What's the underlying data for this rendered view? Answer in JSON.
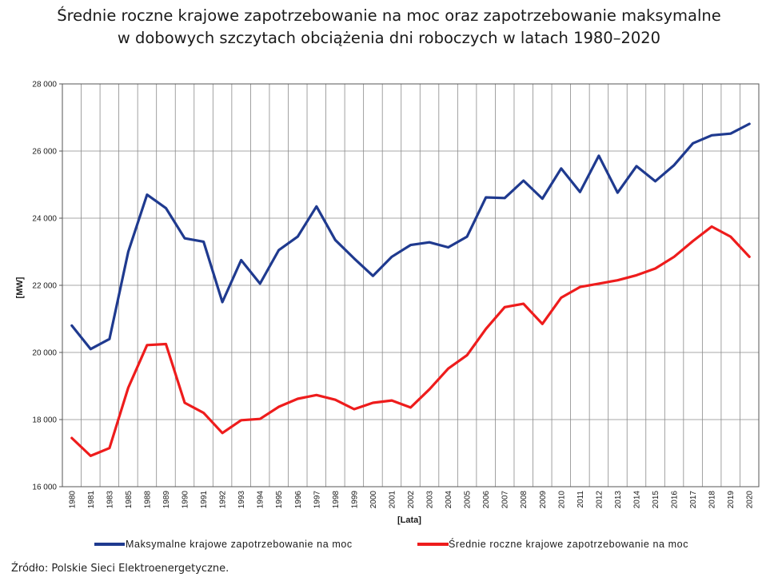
{
  "title_line1": "Średnie roczne krajowe zapotrzebowanie na moc oraz zapotrzebowanie maksymalne",
  "title_line2": "w dobowych szczytach obciążenia dni roboczych w latach 1980–2020",
  "source": "Źródło: Polskie Sieci Elektroenergetyczne.",
  "chart_data": {
    "type": "line",
    "xlabel": "[Lata]",
    "ylabel": "[MW]",
    "ylim": [
      16000,
      28000
    ],
    "yticks": [
      16000,
      18000,
      20000,
      22000,
      24000,
      26000,
      28000
    ],
    "ytick_labels": [
      "16 000",
      "18 000",
      "20 000",
      "22 000",
      "24 000",
      "26 000",
      "28 000"
    ],
    "grid": true,
    "legend_position": "bottom",
    "categories": [
      "1980",
      "1981",
      "1983",
      "1985",
      "1988",
      "1989",
      "1990",
      "1991",
      "1992",
      "1993",
      "1994",
      "1995",
      "1996",
      "1997",
      "1998",
      "1999",
      "2000",
      "2001",
      "2002",
      "2003",
      "2004",
      "2005",
      "2006",
      "2007",
      "2008",
      "2009",
      "2010",
      "2011",
      "2012",
      "2013",
      "2014",
      "2015",
      "2016",
      "2017",
      "2018",
      "2019",
      "2020"
    ],
    "series": [
      {
        "name": "Maksymalne krajowe zapotrzebowanie na moc",
        "color": "#1f3a8f",
        "values": [
          20800,
          20100,
          20400,
          23000,
          24700,
          24300,
          23400,
          23300,
          21500,
          22750,
          22050,
          23050,
          23450,
          24350,
          23350,
          22800,
          22280,
          22850,
          23200,
          23280,
          23130,
          23450,
          24620,
          24600,
          25120,
          24580,
          25480,
          24780,
          25860,
          24760,
          25550,
          25100,
          25580,
          26230,
          26470,
          26520,
          26810
        ]
      },
      {
        "name": "Średnie roczne krajowe zapotrzebowanie na moc",
        "color": "#ee1c1c",
        "values": [
          17450,
          16920,
          17150,
          18950,
          20220,
          20250,
          18500,
          18200,
          17600,
          17980,
          18020,
          18380,
          18620,
          18730,
          18590,
          18310,
          18500,
          18570,
          18360,
          18900,
          19520,
          19920,
          20700,
          21350,
          21450,
          20850,
          21630,
          21950,
          22050,
          22150,
          22300,
          22500,
          22850,
          23320,
          23750,
          23450,
          22850
        ]
      }
    ]
  }
}
